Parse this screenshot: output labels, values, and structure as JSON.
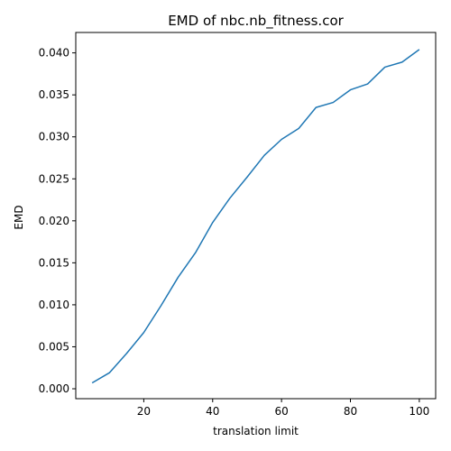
{
  "chart_data": {
    "type": "line",
    "title": "EMD of nbc.nb_fitness.cor",
    "xlabel": "translation limit",
    "ylabel": "EMD",
    "xlim": [
      0.25,
      104.75
    ],
    "ylim": [
      -0.00118,
      0.04243
    ],
    "grid": false,
    "xticks": [
      {
        "value": 20,
        "label": "20"
      },
      {
        "value": 40,
        "label": "40"
      },
      {
        "value": 60,
        "label": "60"
      },
      {
        "value": 80,
        "label": "80"
      },
      {
        "value": 100,
        "label": "100"
      }
    ],
    "yticks": [
      {
        "value": 0.0,
        "label": "0.000"
      },
      {
        "value": 0.005,
        "label": "0.005"
      },
      {
        "value": 0.01,
        "label": "0.010"
      },
      {
        "value": 0.015,
        "label": "0.015"
      },
      {
        "value": 0.02,
        "label": "0.020"
      },
      {
        "value": 0.025,
        "label": "0.025"
      },
      {
        "value": 0.03,
        "label": "0.030"
      },
      {
        "value": 0.035,
        "label": "0.035"
      },
      {
        "value": 0.04,
        "label": "0.040"
      }
    ],
    "series": [
      {
        "color": "#1f77b4",
        "x": [
          5,
          10,
          15,
          20,
          25,
          30,
          35,
          40,
          45,
          50,
          55,
          60,
          65,
          70,
          75,
          80,
          85,
          90,
          95,
          100
        ],
        "y": [
          0.0007,
          0.0019,
          0.0042,
          0.0067,
          0.0099,
          0.0133,
          0.0162,
          0.0198,
          0.0227,
          0.0252,
          0.0278,
          0.0297,
          0.031,
          0.0335,
          0.0341,
          0.0356,
          0.0363,
          0.0383,
          0.0389,
          0.0404
        ]
      }
    ]
  }
}
